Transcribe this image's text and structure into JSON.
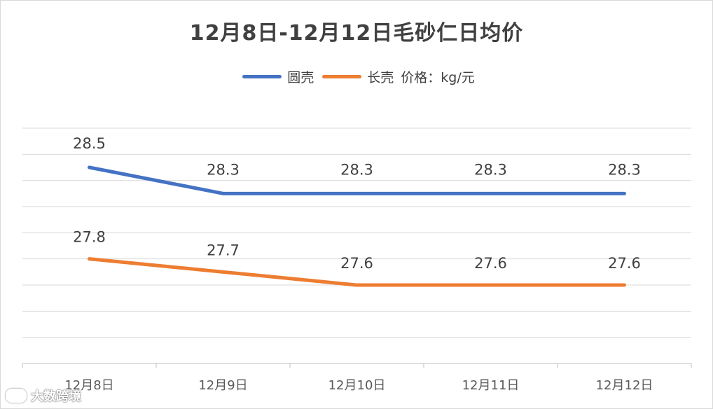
{
  "chart_data": {
    "type": "line",
    "title": "12月8日-12月12日毛砂仁日均价",
    "unit_label": "价格：kg/元",
    "categories": [
      "12月8日",
      "12月9日",
      "12月10日",
      "12月11日",
      "12月12日"
    ],
    "series": [
      {
        "name": "圆壳",
        "values": [
          28.5,
          28.3,
          28.3,
          28.3,
          28.3
        ],
        "color": "#4472c4"
      },
      {
        "name": "长壳",
        "values": [
          27.8,
          27.7,
          27.6,
          27.6,
          27.6
        ],
        "color": "#ed7d31"
      }
    ],
    "ylim": [
      27.0,
      28.8
    ],
    "y_grid_step": 0.2,
    "grid": true,
    "y_axis_labels_shown": false,
    "legend_position": "top"
  },
  "watermark": {
    "text": "大数跨境"
  }
}
